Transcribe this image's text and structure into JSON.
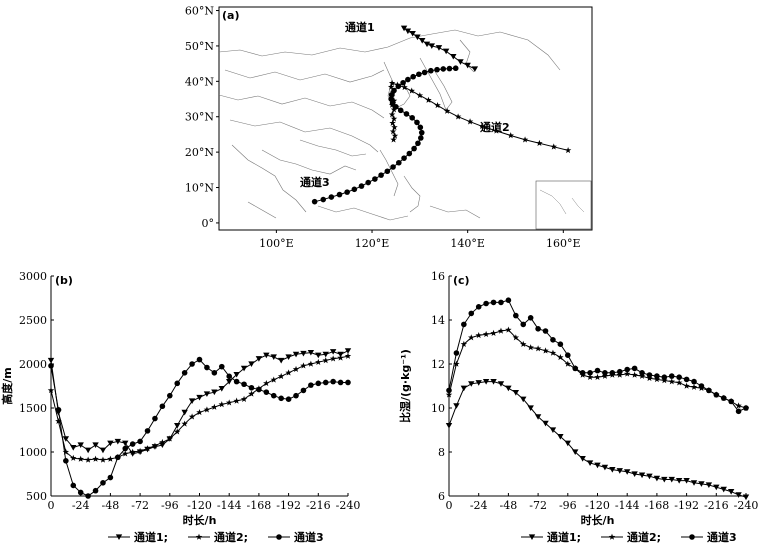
{
  "map": {
    "panel_label": "(a)",
    "lat_ticks": [
      "0°",
      "10°N",
      "20°N",
      "30°N",
      "40°N",
      "50°N",
      "60°N"
    ],
    "lat_values": [
      0,
      10,
      20,
      30,
      40,
      50,
      60
    ],
    "lon_ticks": [
      "100°E",
      "120°E",
      "140°E",
      "160°E"
    ],
    "lon_values": [
      100,
      120,
      140,
      160
    ],
    "extent": {
      "lon": [
        88,
        166
      ],
      "lat": [
        -2,
        61
      ]
    },
    "channels": [
      {
        "name": "通道1",
        "marker": "triangle",
        "path": [
          [
            141.5,
            43.5
          ],
          [
            140,
            44.5
          ],
          [
            138.5,
            45.5
          ],
          [
            137,
            47
          ],
          [
            135.5,
            48.5
          ],
          [
            134,
            49.5
          ],
          [
            132.5,
            50
          ],
          [
            131.5,
            50.5
          ],
          [
            130.5,
            51.5
          ],
          [
            129.5,
            52.5
          ],
          [
            128.5,
            53.5
          ],
          [
            127.5,
            54.2
          ],
          [
            126.7,
            55
          ]
        ]
      },
      {
        "name": "通道2",
        "marker": "star",
        "path": [
          [
            161,
            20.5
          ],
          [
            158,
            21.5
          ],
          [
            155,
            22.5
          ],
          [
            152,
            23.5
          ],
          [
            149,
            24.7
          ],
          [
            146,
            26
          ],
          [
            143,
            27.3
          ],
          [
            140.5,
            28.6
          ],
          [
            138,
            30
          ],
          [
            135.7,
            31.6
          ],
          [
            133.7,
            33.2
          ],
          [
            131.8,
            34.7
          ],
          [
            130,
            36
          ],
          [
            128.3,
            37.3
          ],
          [
            126.8,
            38.3
          ],
          [
            125.3,
            39
          ],
          [
            124.2,
            39.5
          ],
          [
            124,
            38.4
          ],
          [
            124.4,
            37
          ],
          [
            124.2,
            35.7
          ],
          [
            124.6,
            34.5
          ],
          [
            124.2,
            33.3
          ],
          [
            124.6,
            32
          ],
          [
            124.2,
            30.6
          ],
          [
            124.6,
            29.4
          ],
          [
            124.3,
            28.2
          ],
          [
            124.7,
            27
          ],
          [
            124.4,
            25.8
          ],
          [
            124.8,
            24.6
          ],
          [
            124.5,
            23.5
          ]
        ]
      },
      {
        "name": "通道3",
        "marker": "circle",
        "path": [
          [
            108,
            6
          ],
          [
            109.8,
            6.6
          ],
          [
            111.5,
            7.3
          ],
          [
            113.2,
            8
          ],
          [
            114.8,
            8.7
          ],
          [
            116.3,
            9.5
          ],
          [
            117.8,
            10.4
          ],
          [
            119.2,
            11.4
          ],
          [
            120.6,
            12.4
          ],
          [
            121.9,
            13.5
          ],
          [
            123.2,
            14.6
          ],
          [
            124.4,
            15.8
          ],
          [
            125.6,
            17
          ],
          [
            126.7,
            18.3
          ],
          [
            127.8,
            19.6
          ],
          [
            128.8,
            21
          ],
          [
            129.6,
            22.5
          ],
          [
            130.2,
            24
          ],
          [
            130.4,
            25.5
          ],
          [
            130.1,
            27
          ],
          [
            129.4,
            28.4
          ],
          [
            128.4,
            29.7
          ],
          [
            127.2,
            30.8
          ],
          [
            126,
            31.8
          ],
          [
            125,
            32.8
          ],
          [
            124.3,
            33.9
          ],
          [
            124,
            35
          ],
          [
            124.1,
            36.2
          ],
          [
            124.6,
            37.4
          ],
          [
            125.5,
            38.6
          ],
          [
            126.5,
            39.6
          ],
          [
            127.5,
            40.5
          ],
          [
            128.6,
            41.3
          ],
          [
            129.8,
            42
          ],
          [
            131,
            42.5
          ],
          [
            132.3,
            43
          ],
          [
            133.6,
            43.3
          ],
          [
            134.9,
            43.5
          ],
          [
            136.2,
            43.6
          ],
          [
            137.5,
            43.7
          ]
        ]
      }
    ],
    "labels": [
      "通道1",
      "通道2",
      "通道3"
    ]
  },
  "chart_data": [
    {
      "type": "line",
      "panel_label": "(b)",
      "xlabel": "时长/h",
      "ylabel": "高度/m",
      "xlim": [
        0,
        -240
      ],
      "ylim": [
        500,
        3000
      ],
      "xticks": [
        0,
        -24,
        -48,
        -72,
        -96,
        -120,
        -144,
        -168,
        -192,
        -216,
        -240
      ],
      "yticks": [
        500,
        1000,
        1500,
        2000,
        2500,
        3000
      ],
      "x": [
        0,
        -6,
        -12,
        -18,
        -24,
        -30,
        -36,
        -42,
        -48,
        -54,
        -60,
        -66,
        -72,
        -78,
        -84,
        -90,
        -96,
        -102,
        -108,
        -114,
        -120,
        -126,
        -132,
        -138,
        -144,
        -150,
        -156,
        -162,
        -168,
        -174,
        -180,
        -186,
        -192,
        -198,
        -204,
        -210,
        -216,
        -222,
        -228,
        -234,
        -240
      ],
      "series": [
        {
          "name": "通道1",
          "marker": "triangle",
          "values": [
            2040,
            1450,
            1150,
            1050,
            1080,
            1020,
            1080,
            1020,
            1100,
            1120,
            1100,
            980,
            1000,
            1030,
            1060,
            1080,
            1150,
            1300,
            1450,
            1580,
            1620,
            1660,
            1680,
            1720,
            1800,
            1880,
            1950,
            2000,
            2060,
            2100,
            2080,
            2040,
            2080,
            2110,
            2120,
            2130,
            2100,
            2110,
            2140,
            2110,
            2150
          ]
        },
        {
          "name": "通道2",
          "marker": "star",
          "values": [
            1700,
            1350,
            1000,
            930,
            920,
            910,
            920,
            910,
            920,
            940,
            980,
            1000,
            1010,
            1040,
            1070,
            1110,
            1150,
            1230,
            1320,
            1400,
            1450,
            1480,
            1510,
            1540,
            1560,
            1580,
            1600,
            1660,
            1720,
            1780,
            1820,
            1860,
            1900,
            1940,
            1980,
            2000,
            2020,
            2040,
            2060,
            2070,
            2090
          ]
        },
        {
          "name": "通道3",
          "marker": "circle",
          "values": [
            1980,
            1480,
            900,
            620,
            540,
            500,
            560,
            650,
            710,
            940,
            1040,
            1090,
            1120,
            1240,
            1380,
            1520,
            1640,
            1780,
            1900,
            2000,
            2050,
            1960,
            1900,
            1970,
            1860,
            1800,
            1770,
            1730,
            1710,
            1680,
            1640,
            1610,
            1600,
            1640,
            1700,
            1760,
            1780,
            1790,
            1800,
            1790,
            1790
          ]
        }
      ]
    },
    {
      "type": "line",
      "panel_label": "(c)",
      "xlabel": "时长/h",
      "ylabel": "比湿/(g·kg⁻¹)",
      "xlim": [
        0,
        -240
      ],
      "ylim": [
        6,
        16
      ],
      "xticks": [
        0,
        -24,
        -48,
        -72,
        -96,
        -120,
        -144,
        -168,
        -192,
        -216,
        -240
      ],
      "yticks": [
        6,
        8,
        10,
        12,
        14,
        16
      ],
      "x": [
        0,
        -6,
        -12,
        -18,
        -24,
        -30,
        -36,
        -42,
        -48,
        -54,
        -60,
        -66,
        -72,
        -78,
        -84,
        -90,
        -96,
        -102,
        -108,
        -114,
        -120,
        -126,
        -132,
        -138,
        -144,
        -150,
        -156,
        -162,
        -168,
        -174,
        -180,
        -186,
        -192,
        -198,
        -204,
        -210,
        -216,
        -222,
        -228,
        -234,
        -240
      ],
      "series": [
        {
          "name": "通道1",
          "marker": "triangle",
          "values": [
            9.2,
            10.1,
            10.9,
            11.1,
            11.15,
            11.2,
            11.2,
            11.1,
            10.9,
            10.7,
            10.4,
            10.0,
            9.6,
            9.3,
            9.0,
            8.7,
            8.4,
            8.0,
            7.7,
            7.5,
            7.4,
            7.3,
            7.2,
            7.15,
            7.1,
            7.0,
            6.95,
            6.9,
            6.8,
            6.75,
            6.75,
            6.7,
            6.7,
            6.6,
            6.55,
            6.5,
            6.4,
            6.3,
            6.2,
            6.05,
            5.95
          ]
        },
        {
          "name": "通道2",
          "marker": "star",
          "values": [
            10.6,
            12.0,
            12.9,
            13.2,
            13.3,
            13.35,
            13.4,
            13.5,
            13.55,
            13.2,
            12.9,
            12.75,
            12.7,
            12.6,
            12.5,
            12.3,
            12.0,
            11.8,
            11.5,
            11.4,
            11.4,
            11.45,
            11.5,
            11.5,
            11.55,
            11.5,
            11.45,
            11.35,
            11.3,
            11.25,
            11.2,
            11.15,
            11.0,
            10.95,
            10.9,
            10.8,
            10.6,
            10.45,
            10.3,
            10.1,
            10.0
          ]
        },
        {
          "name": "通道3",
          "marker": "circle",
          "values": [
            10.8,
            12.5,
            13.8,
            14.3,
            14.6,
            14.75,
            14.8,
            14.8,
            14.9,
            14.2,
            13.8,
            14.1,
            13.6,
            13.5,
            13.1,
            12.9,
            12.4,
            11.8,
            11.6,
            11.6,
            11.7,
            11.6,
            11.6,
            11.65,
            11.75,
            11.8,
            11.6,
            11.5,
            11.45,
            11.4,
            11.45,
            11.4,
            11.3,
            11.2,
            11.0,
            10.8,
            10.6,
            10.45,
            10.3,
            9.85,
            10.0
          ]
        }
      ],
      "legend": [
        "通道1;",
        "通道2;",
        "通道3"
      ]
    }
  ],
  "legend_b": [
    "通道1;",
    "通道2;",
    "通道3"
  ],
  "legend_c": [
    "通道1;",
    "通道2;",
    "通道3"
  ]
}
